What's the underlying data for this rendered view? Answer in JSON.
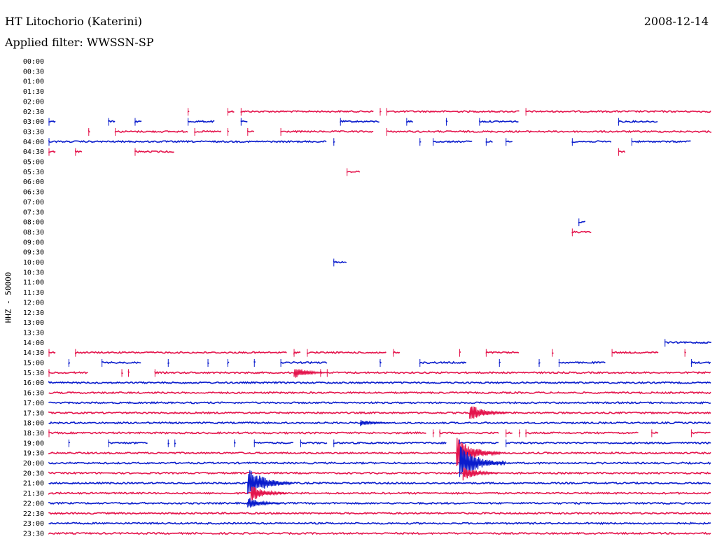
{
  "header": {
    "station": "HT Litochorio (Katerini)",
    "date": "2008-12-14",
    "filter": "Applied filter: WWSSN-SP"
  },
  "chart_data": {
    "type": "line",
    "title": "HT Litochorio (Katerini)",
    "subtitle": "Applied filter: WWSSN-SP",
    "ylabel": "HHZ - 50000",
    "xlabel": "",
    "grid": false,
    "colors": {
      "odd_row": "#0a1ccc",
      "even_row": "#e4144c"
    },
    "rows": [
      {
        "time": "00:00",
        "segments": []
      },
      {
        "time": "00:30",
        "segments": []
      },
      {
        "time": "01:00",
        "segments": []
      },
      {
        "time": "01:30",
        "segments": []
      },
      {
        "time": "02:00",
        "segments": []
      },
      {
        "time": "02:30",
        "segments": [
          [
            0.21,
            0.21
          ],
          [
            0.27,
            0.28
          ],
          [
            0.29,
            0.49
          ],
          [
            0.5,
            0.5
          ],
          [
            0.51,
            0.71
          ],
          [
            0.72,
            1.0
          ]
        ]
      },
      {
        "time": "03:00",
        "segments": [
          [
            0.0,
            0.01
          ],
          [
            0.09,
            0.1
          ],
          [
            0.13,
            0.14
          ],
          [
            0.21,
            0.25
          ],
          [
            0.29,
            0.3
          ],
          [
            0.44,
            0.5
          ],
          [
            0.54,
            0.55
          ],
          [
            0.6,
            0.6
          ],
          [
            0.65,
            0.71
          ],
          [
            0.86,
            0.92
          ]
        ]
      },
      {
        "time": "03:30",
        "segments": [
          [
            0.06,
            0.06
          ],
          [
            0.1,
            0.21
          ],
          [
            0.22,
            0.26
          ],
          [
            0.27,
            0.27
          ],
          [
            0.3,
            0.31
          ],
          [
            0.35,
            0.49
          ],
          [
            0.51,
            1.0
          ]
        ]
      },
      {
        "time": "04:00",
        "segments": [
          [
            0.0,
            0.42
          ],
          [
            0.43,
            0.43
          ],
          [
            0.56,
            0.56
          ],
          [
            0.58,
            0.64
          ],
          [
            0.66,
            0.67
          ],
          [
            0.69,
            0.7
          ],
          [
            0.79,
            0.85
          ],
          [
            0.88,
            0.97
          ]
        ]
      },
      {
        "time": "04:30",
        "segments": [
          [
            0.0,
            0.01
          ],
          [
            0.04,
            0.05
          ],
          [
            0.13,
            0.19
          ],
          [
            0.86,
            0.87
          ]
        ]
      },
      {
        "time": "05:00",
        "segments": []
      },
      {
        "time": "05:30",
        "segments": [
          [
            0.45,
            0.47
          ]
        ]
      },
      {
        "time": "06:00",
        "segments": []
      },
      {
        "time": "06:30",
        "segments": []
      },
      {
        "time": "07:00",
        "segments": []
      },
      {
        "time": "07:30",
        "segments": []
      },
      {
        "time": "08:00",
        "segments": [
          [
            0.8,
            0.81
          ]
        ]
      },
      {
        "time": "08:30",
        "segments": [
          [
            0.79,
            0.82
          ]
        ]
      },
      {
        "time": "09:00",
        "segments": []
      },
      {
        "time": "09:30",
        "segments": []
      },
      {
        "time": "10:00",
        "segments": [
          [
            0.43,
            0.45
          ]
        ]
      },
      {
        "time": "10:30",
        "segments": []
      },
      {
        "time": "11:00",
        "segments": []
      },
      {
        "time": "11:30",
        "segments": []
      },
      {
        "time": "12:00",
        "segments": []
      },
      {
        "time": "12:30",
        "segments": []
      },
      {
        "time": "13:00",
        "segments": []
      },
      {
        "time": "13:30",
        "segments": []
      },
      {
        "time": "14:00",
        "segments": [
          [
            0.93,
            1.0
          ]
        ]
      },
      {
        "time": "14:30",
        "segments": [
          [
            0.0,
            0.01
          ],
          [
            0.04,
            0.36
          ],
          [
            0.37,
            0.38
          ],
          [
            0.39,
            0.51
          ],
          [
            0.52,
            0.53
          ],
          [
            0.62,
            0.62
          ],
          [
            0.66,
            0.71
          ],
          [
            0.76,
            0.76
          ],
          [
            0.85,
            0.92
          ],
          [
            0.96,
            0.96
          ]
        ]
      },
      {
        "time": "15:00",
        "segments": [
          [
            0.03,
            0.03
          ],
          [
            0.08,
            0.14
          ],
          [
            0.18,
            0.18
          ],
          [
            0.24,
            0.24
          ],
          [
            0.27,
            0.27
          ],
          [
            0.31,
            0.31
          ],
          [
            0.35,
            0.42
          ],
          [
            0.5,
            0.5
          ],
          [
            0.56,
            0.63
          ],
          [
            0.68,
            0.68
          ],
          [
            0.74,
            0.74
          ],
          [
            0.77,
            0.84
          ],
          [
            0.97,
            1.0
          ]
        ]
      },
      {
        "time": "15:30",
        "segments": [
          [
            0.0,
            0.06
          ],
          [
            0.11,
            0.11
          ],
          [
            0.12,
            0.12
          ],
          [
            0.16,
            0.4
          ],
          [
            0.41,
            0.41
          ],
          [
            0.42,
            1.0
          ]
        ]
      },
      {
        "time": "16:00",
        "segments": [
          [
            0.0,
            1.0
          ]
        ]
      },
      {
        "time": "16:30",
        "segments": [
          [
            0.0,
            1.0
          ]
        ]
      },
      {
        "time": "17:00",
        "segments": [
          [
            0.0,
            1.0
          ]
        ]
      },
      {
        "time": "17:30",
        "segments": [
          [
            0.0,
            1.0
          ]
        ]
      },
      {
        "time": "18:00",
        "segments": [
          [
            0.0,
            1.0
          ]
        ]
      },
      {
        "time": "18:30",
        "segments": [
          [
            0.0,
            0.57
          ],
          [
            0.58,
            0.58
          ],
          [
            0.59,
            0.68
          ],
          [
            0.69,
            0.7
          ],
          [
            0.71,
            0.71
          ],
          [
            0.72,
            0.89
          ],
          [
            0.91,
            0.92
          ],
          [
            0.97,
            1.0
          ]
        ]
      },
      {
        "time": "19:00",
        "segments": [
          [
            0.03,
            0.03
          ],
          [
            0.09,
            0.15
          ],
          [
            0.18,
            0.18
          ],
          [
            0.19,
            0.19
          ],
          [
            0.28,
            0.28
          ],
          [
            0.31,
            0.37
          ],
          [
            0.38,
            0.42
          ],
          [
            0.43,
            0.6
          ],
          [
            0.62,
            0.68
          ],
          [
            0.69,
            1.0
          ]
        ]
      },
      {
        "time": "19:30",
        "segments": [
          [
            0.0,
            1.0
          ]
        ]
      },
      {
        "time": "20:00",
        "segments": [
          [
            0.0,
            1.0
          ]
        ]
      },
      {
        "time": "20:30",
        "segments": [
          [
            0.0,
            1.0
          ]
        ]
      },
      {
        "time": "21:00",
        "segments": [
          [
            0.0,
            1.0
          ]
        ]
      },
      {
        "time": "21:30",
        "segments": [
          [
            0.0,
            1.0
          ]
        ]
      },
      {
        "time": "22:00",
        "segments": [
          [
            0.0,
            1.0
          ]
        ]
      },
      {
        "time": "22:30",
        "segments": [
          [
            0.0,
            1.0
          ]
        ]
      },
      {
        "time": "23:00",
        "segments": [
          [
            0.0,
            1.0
          ]
        ]
      },
      {
        "time": "23:30",
        "segments": [
          [
            0.0,
            1.0
          ]
        ]
      }
    ],
    "events": [
      {
        "time": "15:30",
        "x": 0.37,
        "amplitude": 1.5
      },
      {
        "time": "17:30",
        "x": 0.635,
        "amplitude": 2.2
      },
      {
        "time": "18:00",
        "x": 0.47,
        "amplitude": 0.8
      },
      {
        "time": "19:30",
        "x": 0.615,
        "amplitude": 4.0
      },
      {
        "time": "20:00",
        "x": 0.62,
        "amplitude": 4.5
      },
      {
        "time": "20:30",
        "x": 0.625,
        "amplitude": 1.8
      },
      {
        "time": "21:00",
        "x": 0.3,
        "amplitude": 4.0
      },
      {
        "time": "21:30",
        "x": 0.305,
        "amplitude": 2.0
      },
      {
        "time": "22:00",
        "x": 0.3,
        "amplitude": 1.5
      }
    ]
  }
}
